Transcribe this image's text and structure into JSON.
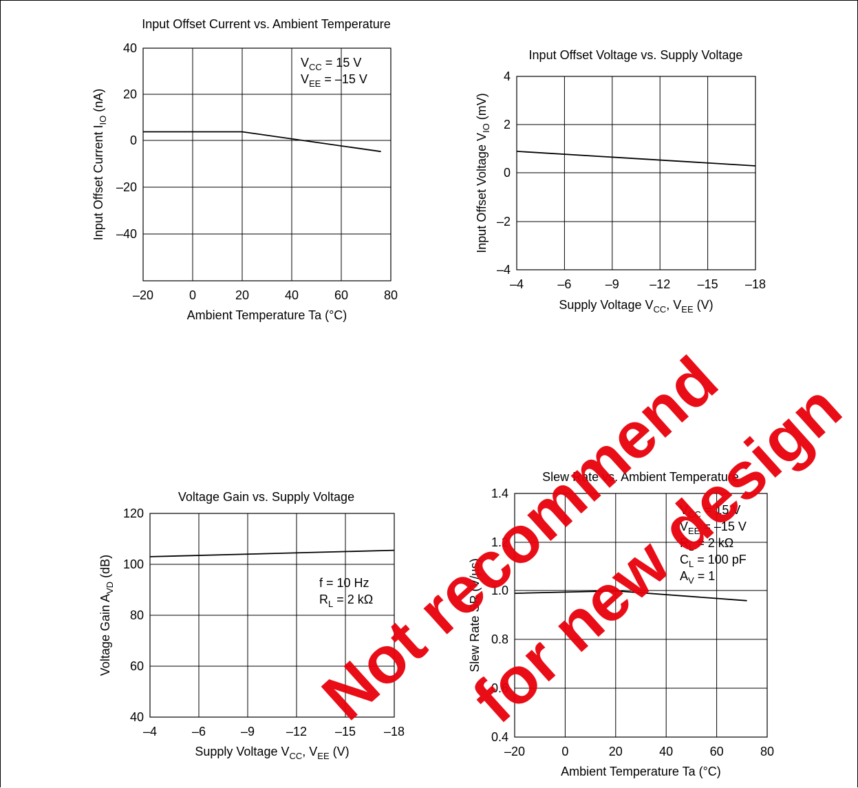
{
  "watermark": {
    "line1": "Not recommend",
    "line2": "for new design",
    "color": "#e8000b"
  },
  "chart_data": [
    {
      "type": "line",
      "title": "Input Offset Current vs. Ambient Temperature",
      "xlabel": "Ambient Temperature  Ta  (°C)",
      "ylabel": "Input Offset Current  I_IO  (nA)",
      "ylabel_parts": {
        "main": "Input Offset Current  I",
        "sub": "IO",
        "tail": "  (nA)"
      },
      "x_ticks": [
        -20,
        0,
        20,
        40,
        60,
        80
      ],
      "x_tick_labels": [
        "–20",
        "0",
        "20",
        "40",
        "60",
        "80"
      ],
      "y_ticks": [
        40,
        20,
        0,
        -20,
        -40
      ],
      "y_tick_labels": [
        "40",
        "20",
        "0",
        "–20",
        "–40"
      ],
      "xlim": [
        -20,
        80
      ],
      "ylim": [
        -60,
        40
      ],
      "grid": true,
      "annotations": [
        {
          "main": "V",
          "sub": "CC",
          "tail": " = 15 V"
        },
        {
          "main": "V",
          "sub": "EE",
          "tail": " = –15 V"
        }
      ],
      "series": [
        {
          "x": [
            -20,
            20,
            76
          ],
          "y": [
            4,
            4,
            -4.5
          ]
        }
      ]
    },
    {
      "type": "line",
      "title": "Input Offset Voltage vs. Supply Voltage",
      "xlabel": "Supply Voltage  V_CC, V_EE  (V)",
      "xlabel_parts": {
        "a": "Supply Voltage  V",
        "s1": "CC",
        "b": ", V",
        "s2": "EE",
        "c": "  (V)"
      },
      "ylabel": "Input Offset Voltage  V_IO  (mV)",
      "ylabel_parts": {
        "main": "Input Offset Voltage  V",
        "sub": "IO",
        "tail": "  (mV)"
      },
      "x_tick_labels": [
        "–4",
        "–6",
        "–9",
        "–12",
        "–15",
        "–18"
      ],
      "y_ticks": [
        4,
        2,
        0,
        -2,
        -4
      ],
      "y_tick_labels": [
        "4",
        "2",
        "0",
        "–2",
        "–4"
      ],
      "ylim": [
        -4,
        4
      ],
      "grid": true,
      "series": [
        {
          "x": [
            "–4",
            "–18"
          ],
          "y": [
            0.9,
            0.3
          ]
        }
      ]
    },
    {
      "type": "line",
      "title": "Voltage Gain vs. Supply Voltage",
      "xlabel": "Supply Voltage  V_CC, V_EE  (V)",
      "xlabel_parts": {
        "a": "Supply Voltage  V",
        "s1": "CC",
        "b": ", V",
        "s2": "EE",
        "c": "  (V)"
      },
      "ylabel": "Voltage Gain  A_VD  (dB)",
      "ylabel_parts": {
        "main": "Voltage Gain  A",
        "sub": "VD",
        "tail": "  (dB)"
      },
      "x_tick_labels": [
        "–4",
        "–6",
        "–9",
        "–12",
        "–15",
        "–18"
      ],
      "y_ticks": [
        120,
        100,
        80,
        60,
        40
      ],
      "y_tick_labels": [
        "120",
        "100",
        "80",
        "60",
        "40"
      ],
      "ylim": [
        40,
        120
      ],
      "grid": true,
      "annotations": [
        {
          "main": "f = 10 Hz",
          "sub": "",
          "tail": ""
        },
        {
          "main": "R",
          "sub": "L",
          "tail": " = 2 kΩ"
        }
      ],
      "series": [
        {
          "x": [
            "–4",
            "–18"
          ],
          "y": [
            103,
            105.5
          ]
        }
      ]
    },
    {
      "type": "line",
      "title": "Slew Rate vs. Ambient Temperature",
      "xlabel": "Ambient Temperature  Ta  (°C)",
      "ylabel": "Slew Rate  SR  (V/µs)",
      "x_ticks": [
        -20,
        0,
        20,
        40,
        60,
        80
      ],
      "x_tick_labels": [
        "–20",
        "0",
        "20",
        "40",
        "60",
        "80"
      ],
      "y_ticks": [
        1.4,
        1.2,
        1.0,
        0.8,
        0.6,
        0.4
      ],
      "y_tick_labels": [
        "1.4",
        "1.2",
        "1.0",
        "0.8",
        "0.6",
        "0.4"
      ],
      "xlim": [
        -20,
        80
      ],
      "ylim": [
        0.4,
        1.4
      ],
      "grid": true,
      "annotations": [
        {
          "main": "V",
          "sub": "CC",
          "tail": " = 15 V"
        },
        {
          "main": "V",
          "sub": "EE",
          "tail": " = –15 V"
        },
        {
          "main": "R",
          "sub": "L",
          "tail": " = 2 kΩ"
        },
        {
          "main": "C",
          "sub": "L",
          "tail": " = 100 pF"
        },
        {
          "main": "A",
          "sub": "V",
          "tail": " = 1"
        }
      ],
      "series": [
        {
          "x": [
            -20,
            20,
            72
          ],
          "y": [
            0.99,
            1.0,
            0.96
          ]
        }
      ]
    }
  ]
}
